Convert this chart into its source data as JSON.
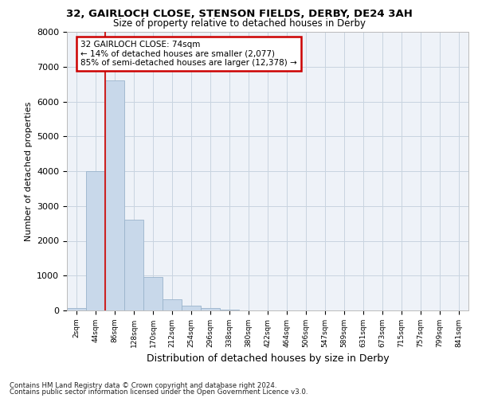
{
  "title1": "32, GAIRLOCH CLOSE, STENSON FIELDS, DERBY, DE24 3AH",
  "title2": "Size of property relative to detached houses in Derby",
  "xlabel": "Distribution of detached houses by size in Derby",
  "ylabel": "Number of detached properties",
  "bar_categories": [
    "2sqm",
    "44sqm",
    "86sqm",
    "128sqm",
    "170sqm",
    "212sqm",
    "254sqm",
    "296sqm",
    "338sqm",
    "380sqm",
    "422sqm",
    "464sqm",
    "506sqm",
    "547sqm",
    "589sqm",
    "631sqm",
    "673sqm",
    "715sqm",
    "757sqm",
    "799sqm",
    "841sqm"
  ],
  "bar_values": [
    70,
    4000,
    6600,
    2600,
    970,
    330,
    130,
    70,
    20,
    5,
    2,
    0,
    0,
    0,
    0,
    0,
    0,
    0,
    0,
    0,
    0
  ],
  "bar_color": "#c8d8ea",
  "bar_edge_color": "#9ab4cc",
  "annotation_text": "32 GAIRLOCH CLOSE: 74sqm\n← 14% of detached houses are smaller (2,077)\n85% of semi-detached houses are larger (12,378) →",
  "annotation_box_color": "#ffffff",
  "annotation_box_edge": "#cc0000",
  "red_line_color": "#cc2222",
  "grid_color": "#c8d4e0",
  "background_color": "#eef2f8",
  "footer1": "Contains HM Land Registry data © Crown copyright and database right 2024.",
  "footer2": "Contains public sector information licensed under the Open Government Licence v3.0.",
  "ylim": [
    0,
    8000
  ],
  "yticks": [
    0,
    1000,
    2000,
    3000,
    4000,
    5000,
    6000,
    7000,
    8000
  ]
}
